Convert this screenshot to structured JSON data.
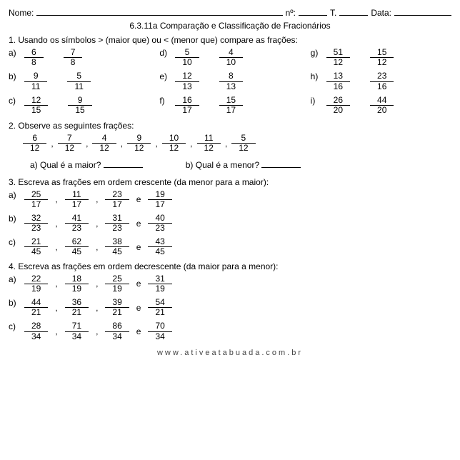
{
  "header": {
    "name_label": "Nome:",
    "num_label": "nº:",
    "t_label": "T.",
    "date_label": "Data:"
  },
  "title": "6.3.11a Comparação e Classificação de Fracionários",
  "q1": {
    "instr": "1. Usando os símbolos > (maior que) ou < (menor que) compare as frações:",
    "items": [
      {
        "lab": "a)",
        "f1": {
          "n": "6",
          "d": "8"
        },
        "f2": {
          "n": "7",
          "d": "8"
        }
      },
      {
        "lab": "d)",
        "f1": {
          "n": "5",
          "d": "10"
        },
        "f2": {
          "n": "4",
          "d": "10"
        }
      },
      {
        "lab": "g)",
        "f1": {
          "n": "51",
          "d": "12"
        },
        "f2": {
          "n": "15",
          "d": "12"
        }
      },
      {
        "lab": "b)",
        "f1": {
          "n": "9",
          "d": "11"
        },
        "f2": {
          "n": "5",
          "d": "11"
        }
      },
      {
        "lab": "e)",
        "f1": {
          "n": "12",
          "d": "13"
        },
        "f2": {
          "n": "8",
          "d": "13"
        }
      },
      {
        "lab": "h)",
        "f1": {
          "n": "13",
          "d": "16"
        },
        "f2": {
          "n": "23",
          "d": "16"
        }
      },
      {
        "lab": "c)",
        "f1": {
          "n": "12",
          "d": "15"
        },
        "f2": {
          "n": "9",
          "d": "15"
        }
      },
      {
        "lab": "f)",
        "f1": {
          "n": "16",
          "d": "17"
        },
        "f2": {
          "n": "15",
          "d": "17"
        }
      },
      {
        "lab": "i)",
        "f1": {
          "n": "26",
          "d": "20"
        },
        "f2": {
          "n": "44",
          "d": "20"
        }
      }
    ]
  },
  "q2": {
    "instr": "2. Observe as seguintes frações:",
    "fracs": [
      {
        "n": "6",
        "d": "12"
      },
      {
        "n": "7",
        "d": "12"
      },
      {
        "n": "4",
        "d": "12"
      },
      {
        "n": "9",
        "d": "12"
      },
      {
        "n": "10",
        "d": "12"
      },
      {
        "n": "11",
        "d": "12"
      },
      {
        "n": "5",
        "d": "12"
      }
    ],
    "sub_a": "a) Qual é a maior?",
    "sub_b": "b) Qual é a menor?"
  },
  "q3": {
    "instr": "3. Escreva as frações em ordem crescente (da menor para a maior):",
    "rows": [
      {
        "lab": "a)",
        "f": [
          {
            "n": "25",
            "d": "17"
          },
          {
            "n": "11",
            "d": "17"
          },
          {
            "n": "23",
            "d": "17"
          },
          {
            "n": "19",
            "d": "17"
          }
        ]
      },
      {
        "lab": "b)",
        "f": [
          {
            "n": "32",
            "d": "23"
          },
          {
            "n": "41",
            "d": "23"
          },
          {
            "n": "31",
            "d": "23"
          },
          {
            "n": "40",
            "d": "23"
          }
        ]
      },
      {
        "lab": "c)",
        "f": [
          {
            "n": "21",
            "d": "45"
          },
          {
            "n": "62",
            "d": "45"
          },
          {
            "n": "38",
            "d": "45"
          },
          {
            "n": "43",
            "d": "45"
          }
        ]
      }
    ]
  },
  "q4": {
    "instr": "4. Escreva as frações em ordem decrescente (da maior para a menor):",
    "rows": [
      {
        "lab": "a)",
        "f": [
          {
            "n": "22",
            "d": "19"
          },
          {
            "n": "18",
            "d": "19"
          },
          {
            "n": "25",
            "d": "19"
          },
          {
            "n": "31",
            "d": "19"
          }
        ]
      },
      {
        "lab": "b)",
        "f": [
          {
            "n": "44",
            "d": "21"
          },
          {
            "n": "36",
            "d": "21"
          },
          {
            "n": "39",
            "d": "21"
          },
          {
            "n": "54",
            "d": "21"
          }
        ]
      },
      {
        "lab": "c)",
        "f": [
          {
            "n": "28",
            "d": "34"
          },
          {
            "n": "71",
            "d": "34"
          },
          {
            "n": "86",
            "d": "34"
          },
          {
            "n": "70",
            "d": "34"
          }
        ]
      }
    ]
  },
  "sep_comma": ",",
  "sep_e": "e",
  "footer": "www.ativeatabuada.com.br"
}
